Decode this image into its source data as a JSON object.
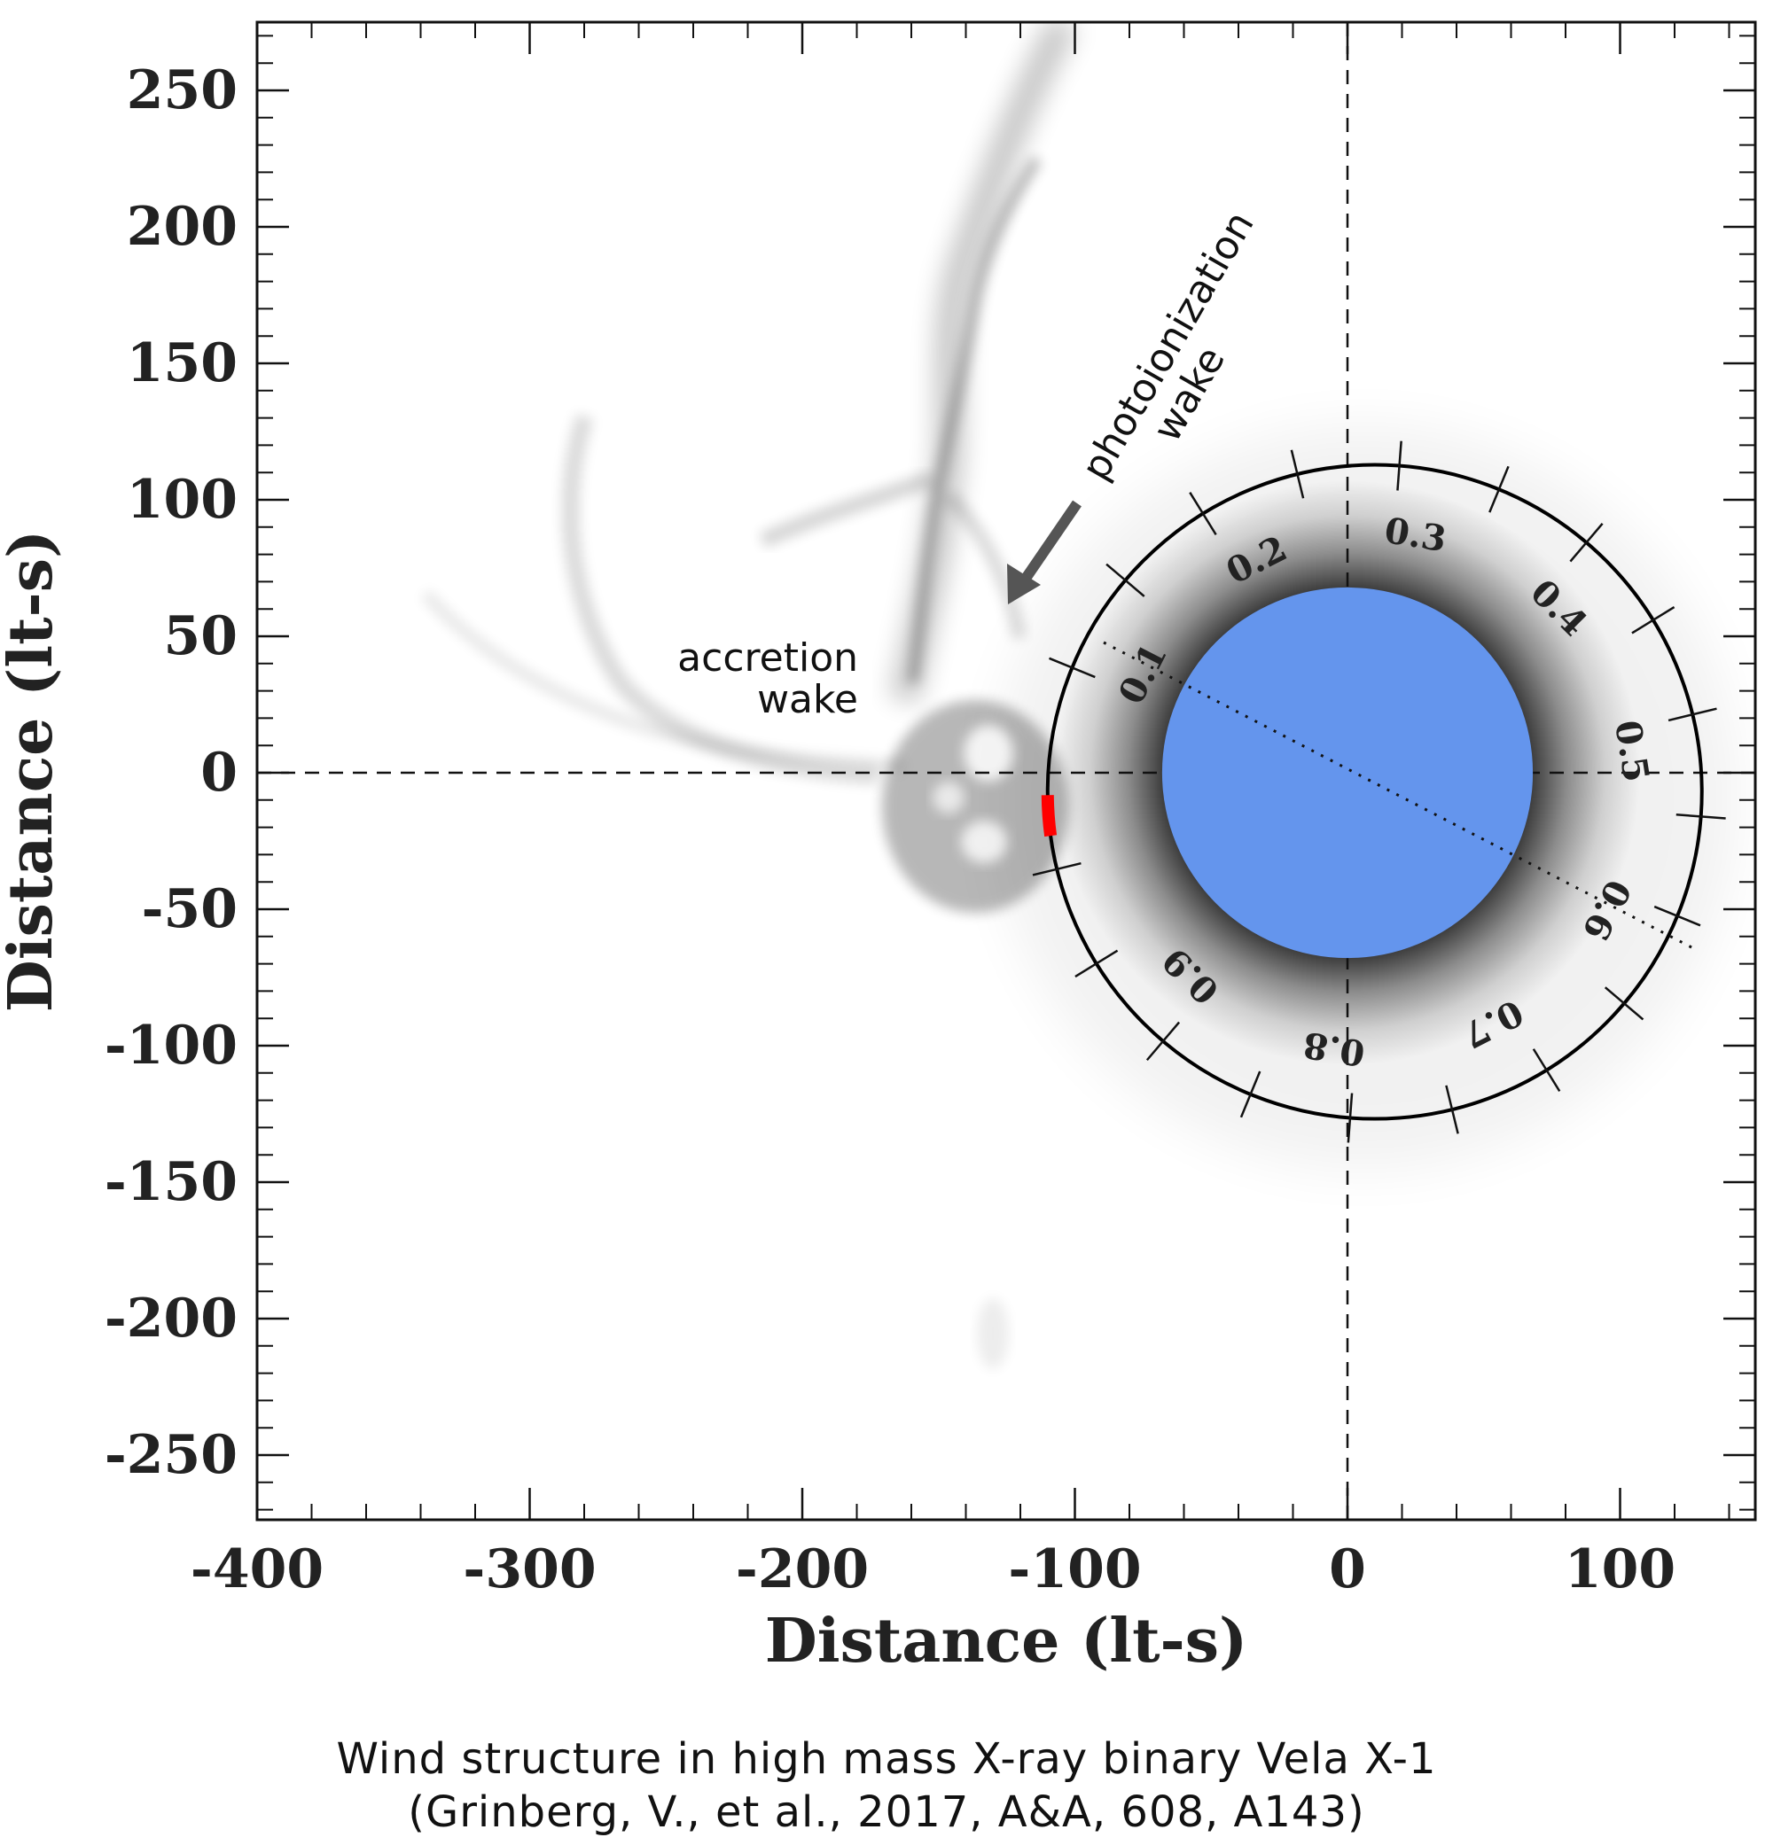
{
  "chart_data": {
    "type": "other",
    "xlabel": "Distance (lt-s)",
    "ylabel": "Distance (lt-s)",
    "xlim": [
      -400,
      150
    ],
    "ylim": [
      -275,
      275
    ],
    "x_ticks": [
      -400,
      -300,
      -200,
      -100,
      0,
      100
    ],
    "x_tick_labels": [
      "-400",
      "-300",
      "-200",
      "-100",
      "0",
      "100"
    ],
    "y_ticks": [
      250,
      200,
      150,
      100,
      50,
      0,
      -50,
      -100,
      -150,
      -200,
      -250
    ],
    "y_tick_labels": [
      "250",
      "200",
      "150",
      "100",
      "50",
      "0",
      "-50",
      "-100",
      "-150",
      "-200",
      "-250"
    ],
    "star": {
      "center": [
        0,
        0
      ],
      "radius": 68,
      "color": "#6495ED"
    },
    "orbit": {
      "center": [
        10,
        -7
      ],
      "radius": 120,
      "color": "#000000"
    },
    "orbital_phase_labels": [
      "0.1",
      "0.2",
      "0.3",
      "0.4",
      "0.5",
      "0.6",
      "0.7",
      "0.8",
      "0.9"
    ],
    "highlight_arc": {
      "color": "#ff0000"
    },
    "annotations": [
      {
        "text_lines": [
          "photoionization",
          "wake"
        ],
        "arrow": true
      },
      {
        "text_lines": [
          "accretion",
          "wake"
        ]
      }
    ],
    "grid": false
  },
  "caption": {
    "line1": "Wind structure in high mass X-ray binary Vela X-1",
    "line2": "(Grinberg, V., et al., 2017, A&A, 608, A143)"
  }
}
